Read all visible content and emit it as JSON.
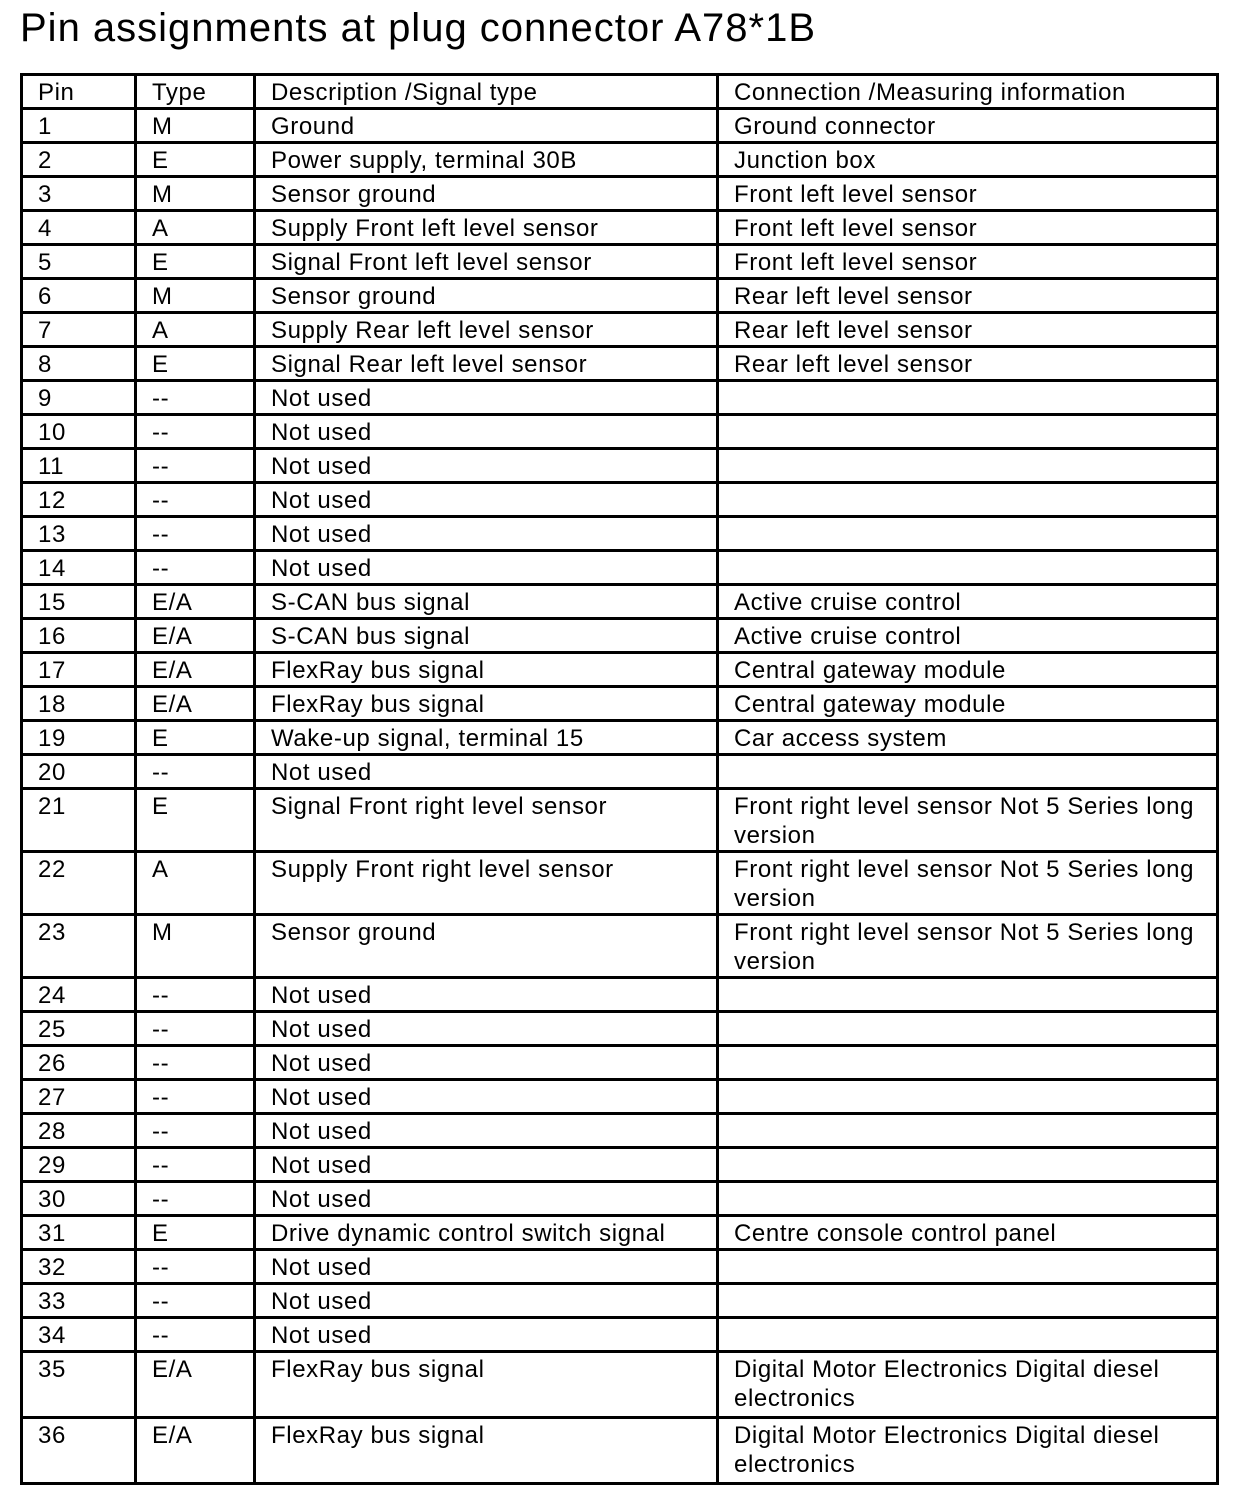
{
  "title": "Pin assignments at plug connector A78*1B",
  "table": {
    "headers": [
      "Pin",
      "Type",
      "Description /Signal type",
      "Connection /Measuring information"
    ],
    "rows": [
      [
        "1",
        "M",
        "Ground",
        "Ground connector"
      ],
      [
        "2",
        "E",
        "Power supply, terminal 30B",
        "Junction box"
      ],
      [
        "3",
        "M",
        "Sensor ground",
        "Front left level sensor"
      ],
      [
        "4",
        "A",
        "Supply Front left level sensor",
        "Front left level sensor"
      ],
      [
        "5",
        "E",
        "Signal Front left level sensor",
        "Front left level sensor"
      ],
      [
        "6",
        "M",
        "Sensor ground",
        "Rear left level sensor"
      ],
      [
        "7",
        "A",
        "Supply Rear left level sensor",
        "Rear left level sensor"
      ],
      [
        "8",
        "E",
        "Signal Rear left level sensor",
        "Rear left level sensor"
      ],
      [
        "9",
        "--",
        "Not used",
        ""
      ],
      [
        "10",
        "--",
        "Not used",
        ""
      ],
      [
        "11",
        "--",
        "Not used",
        ""
      ],
      [
        "12",
        "--",
        "Not used",
        ""
      ],
      [
        "13",
        "--",
        "Not used",
        ""
      ],
      [
        "14",
        "--",
        "Not used",
        ""
      ],
      [
        "15",
        "E/A",
        "S-CAN bus signal",
        "Active cruise control"
      ],
      [
        "16",
        "E/A",
        "S-CAN bus signal",
        "Active cruise control"
      ],
      [
        "17",
        "E/A",
        "FlexRay bus signal",
        "Central gateway module"
      ],
      [
        "18",
        "E/A",
        "FlexRay bus signal",
        "Central gateway module"
      ],
      [
        "19",
        "E",
        "Wake-up signal, terminal 15",
        "Car access system"
      ],
      [
        "20",
        "--",
        "Not used",
        ""
      ],
      [
        "21",
        "E",
        "Signal Front right level sensor",
        "Front right level sensor Not 5 Series long version"
      ],
      [
        "22",
        "A",
        "Supply Front right level sensor",
        "Front right level sensor Not 5 Series long version"
      ],
      [
        "23",
        "M",
        "Sensor ground",
        "Front right level sensor Not 5 Series long version"
      ],
      [
        "24",
        "--",
        "Not used",
        ""
      ],
      [
        "25",
        "--",
        "Not used",
        ""
      ],
      [
        "26",
        "--",
        "Not used",
        ""
      ],
      [
        "27",
        "--",
        "Not used",
        ""
      ],
      [
        "28",
        "--",
        "Not used",
        ""
      ],
      [
        "29",
        "--",
        "Not used",
        ""
      ],
      [
        "30",
        "--",
        "Not used",
        ""
      ],
      [
        "31",
        "E",
        "Drive dynamic control switch signal",
        "Centre console control panel"
      ],
      [
        "32",
        "--",
        "Not used",
        ""
      ],
      [
        "33",
        "--",
        "Not used",
        ""
      ],
      [
        "34",
        "--",
        "Not used",
        ""
      ],
      [
        "35",
        "E/A",
        "FlexRay bus signal",
        "Digital Motor Electronics Digital diesel electronics"
      ],
      [
        "36",
        "E/A",
        "FlexRay bus signal",
        "Digital Motor Electronics Digital diesel electronics"
      ]
    ]
  }
}
